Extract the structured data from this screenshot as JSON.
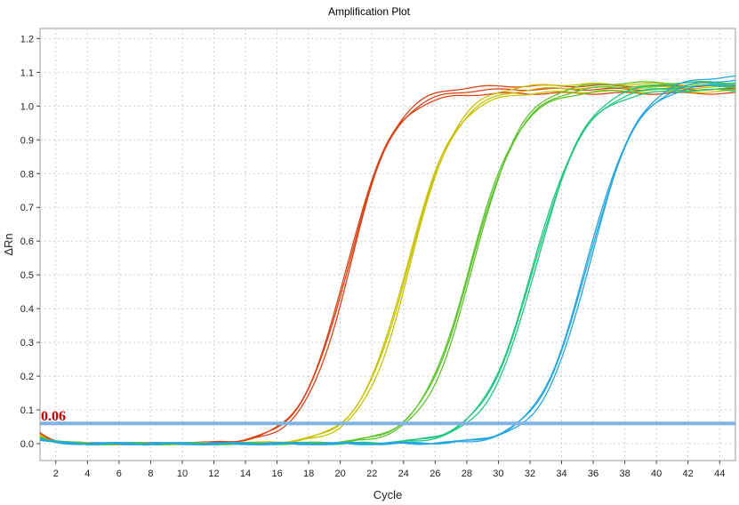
{
  "chart_data": {
    "type": "line",
    "title": "Amplification Plot",
    "xlabel": "Cycle",
    "ylabel": "ΔRn",
    "xlim": [
      1,
      45
    ],
    "ylim": [
      -0.05,
      1.23
    ],
    "x_ticks": [
      2,
      4,
      6,
      8,
      10,
      12,
      14,
      16,
      18,
      20,
      22,
      24,
      26,
      28,
      30,
      32,
      34,
      36,
      38,
      40,
      42,
      44
    ],
    "y_ticks": [
      "0.0",
      "0.1",
      "0.2",
      "0.3",
      "0.4",
      "0.5",
      "0.6",
      "0.7",
      "0.8",
      "0.9",
      "1.0",
      "1.1",
      "1.2"
    ],
    "grid": true,
    "threshold": {
      "value": 0.06,
      "label": "0.06",
      "color": "#7fb2e5"
    },
    "colors": {
      "label_red": "#cc0000",
      "grid": "#cfcfcf",
      "axis": "#444444"
    },
    "series_groups": [
      {
        "color": "#d84315",
        "midpoint": 20.5,
        "slope": 1.45,
        "plateau": 1.05,
        "replicates": 3
      },
      {
        "color": "#c8c200",
        "midpoint": 24.3,
        "slope": 1.5,
        "plateau": 1.055,
        "replicates": 3
      },
      {
        "color": "#5ec42d",
        "midpoint": 28.3,
        "slope": 1.55,
        "plateau": 1.06,
        "replicates": 3
      },
      {
        "color": "#1ec880",
        "midpoint": 32.3,
        "slope": 1.6,
        "plateau": 1.06,
        "replicates": 3
      },
      {
        "color": "#23a6e0",
        "midpoint": 35.7,
        "slope": 1.55,
        "plateau": 1.08,
        "replicates": 3
      }
    ]
  }
}
